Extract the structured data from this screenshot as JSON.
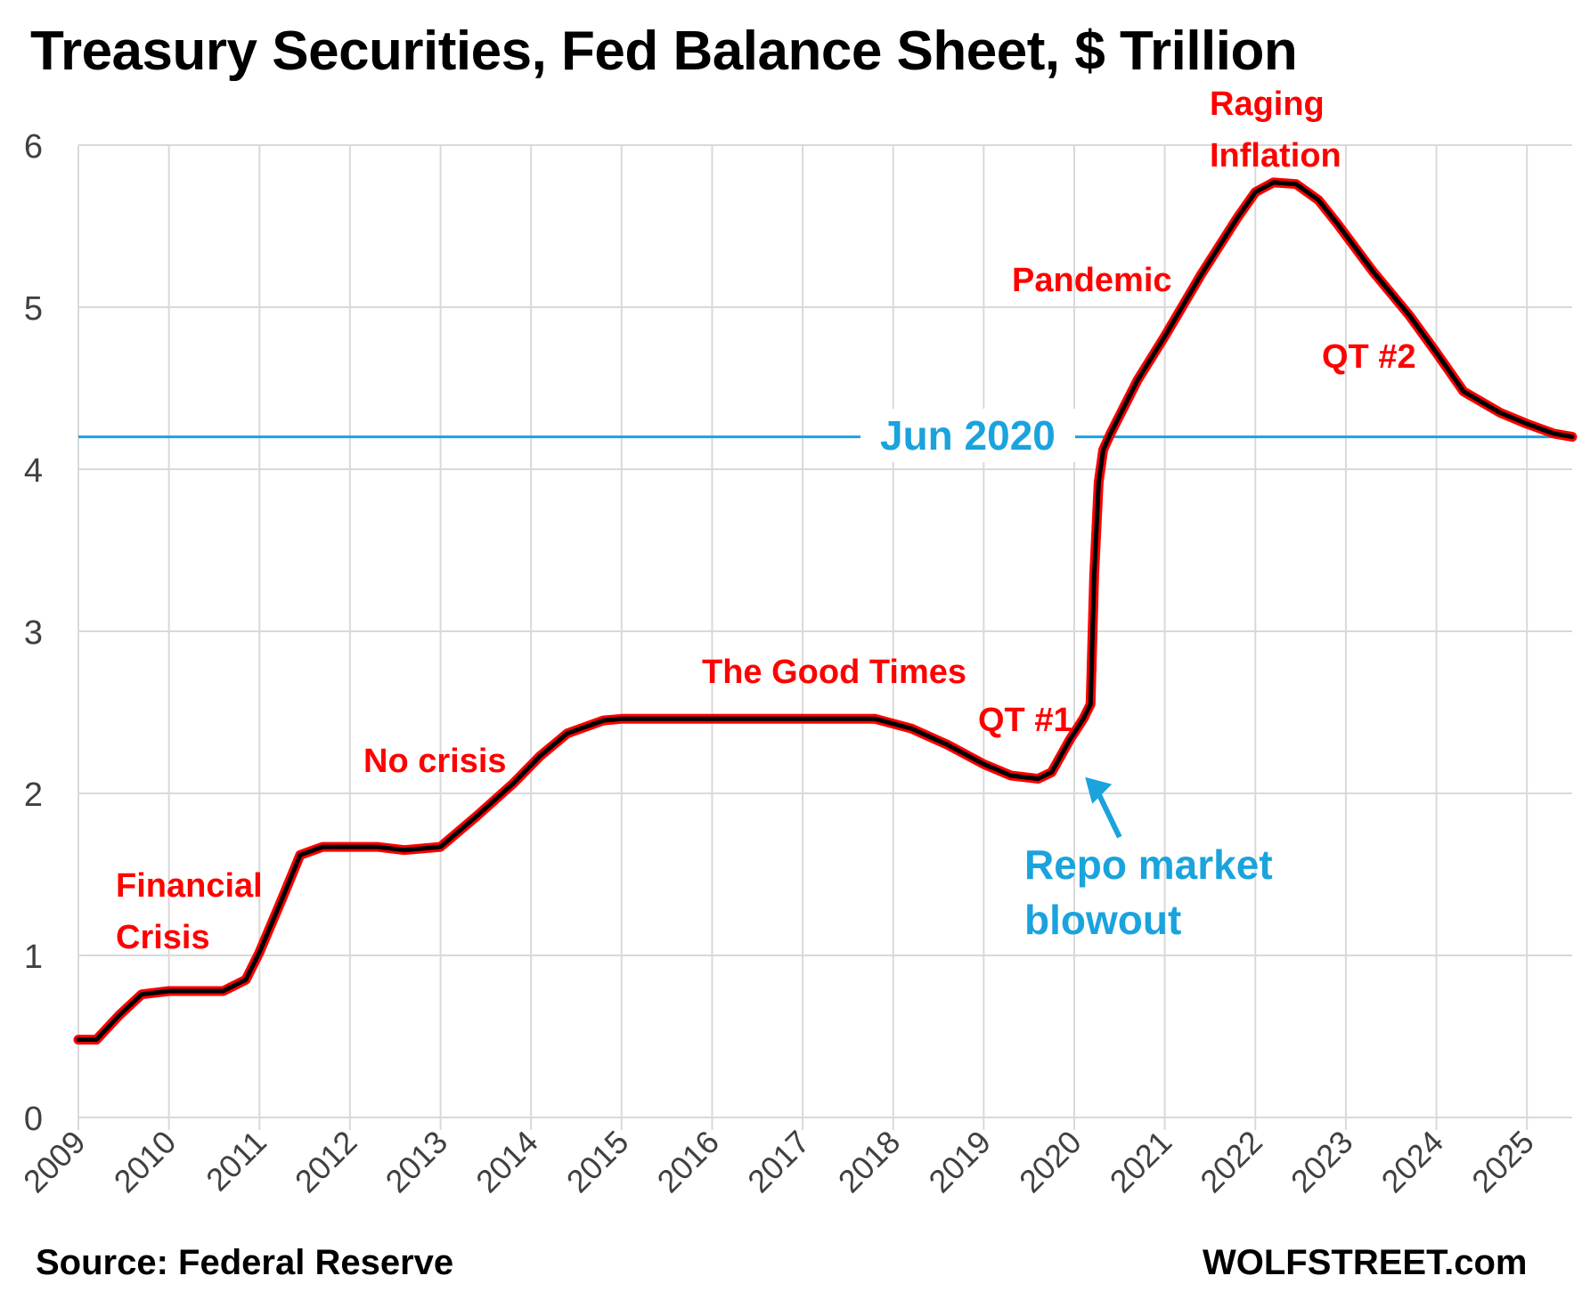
{
  "title": "Treasury Securities, Fed Balance Sheet, $ Trillion",
  "source": "Source: Federal Reserve",
  "brand": "WOLFSTREET.com",
  "colors": {
    "line_outer": "#ff0000",
    "line_inner": "#000000",
    "reference": "#1aa3dd",
    "annotation": "#ff0000",
    "grid": "#d9d9d9"
  },
  "chart_data": {
    "type": "line",
    "title": "Treasury Securities, Fed Balance Sheet, $ Trillion",
    "xlabel": "",
    "ylabel": "",
    "xlim": [
      2009,
      2025.5
    ],
    "ylim": [
      0,
      6
    ],
    "grid": true,
    "legend": "none",
    "x_ticks": [
      "2009",
      "2010",
      "2011",
      "2012",
      "2013",
      "2014",
      "2015",
      "2016",
      "2017",
      "2018",
      "2019",
      "2020",
      "2021",
      "2022",
      "2023",
      "2024",
      "2025"
    ],
    "y_ticks": [
      "0",
      "1",
      "2",
      "3",
      "4",
      "5",
      "6"
    ],
    "series": [
      {
        "x": [
          2009.0,
          2009.2,
          2009.45,
          2009.7,
          2010.0,
          2010.6,
          2010.85,
          2011.0,
          2011.25,
          2011.45,
          2011.7,
          2012.0,
          2012.3,
          2012.6,
          2013.0,
          2013.4,
          2013.8,
          2014.1,
          2014.4,
          2014.8,
          2015.0,
          2016.0,
          2017.0,
          2017.8,
          2018.2,
          2018.6,
          2019.0,
          2019.3,
          2019.6,
          2019.75,
          2019.95,
          2020.1,
          2020.18,
          2020.22,
          2020.27,
          2020.32,
          2020.4,
          2020.7,
          2021.0,
          2021.4,
          2021.8,
          2022.0,
          2022.2,
          2022.45,
          2022.7,
          2022.9,
          2023.3,
          2023.7,
          2024.0,
          2024.3,
          2024.7,
          2025.0,
          2025.3,
          2025.5
        ],
        "y": [
          0.48,
          0.48,
          0.63,
          0.76,
          0.78,
          0.78,
          0.85,
          1.02,
          1.35,
          1.62,
          1.67,
          1.67,
          1.67,
          1.65,
          1.67,
          1.86,
          2.06,
          2.23,
          2.37,
          2.45,
          2.46,
          2.46,
          2.46,
          2.46,
          2.4,
          2.3,
          2.18,
          2.11,
          2.09,
          2.13,
          2.33,
          2.46,
          2.55,
          3.35,
          3.92,
          4.12,
          4.22,
          4.55,
          4.82,
          5.2,
          5.55,
          5.71,
          5.77,
          5.76,
          5.66,
          5.52,
          5.22,
          4.95,
          4.72,
          4.48,
          4.35,
          4.28,
          4.22,
          4.2
        ]
      }
    ],
    "reference_line": {
      "y": 4.2,
      "label": "Jun 2020"
    },
    "annotations": [
      {
        "text": "Financial Crisis",
        "lines": [
          "Financial",
          "Crisis"
        ]
      },
      {
        "text": "No crisis"
      },
      {
        "text": "The Good Times"
      },
      {
        "text": "QT #1"
      },
      {
        "text": "Pandemic"
      },
      {
        "text": "Raging Inflation",
        "lines": [
          "Raging",
          "Inflation"
        ]
      },
      {
        "text": "QT #2"
      },
      {
        "text": "Repo market blowout",
        "lines": [
          "Repo market",
          "blowout"
        ]
      }
    ]
  }
}
